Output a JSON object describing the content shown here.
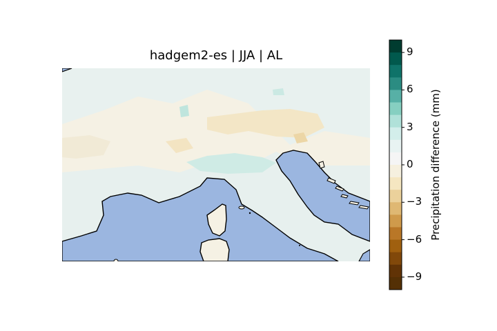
{
  "map": {
    "title": "hadgem2-es | JJA | AL",
    "land_color": "#f5f1e4",
    "sea_color": "#9bb6e0"
  },
  "colorbar": {
    "label": "Precipitation difference (mm)",
    "range": [
      -10,
      10
    ],
    "ticks": [
      "9",
      "6",
      "3",
      "0",
      "−3",
      "−6",
      "−9"
    ],
    "tick_values": [
      9,
      6,
      3,
      0,
      -3,
      -6,
      -9
    ],
    "colors": [
      "#003c30",
      "#01594d",
      "#0f7369",
      "#2b8c82",
      "#57b0a6",
      "#86cfc1",
      "#b0e1d9",
      "#d3eeeb",
      "#e8f3f2",
      "#f5f5f5",
      "#f6f0df",
      "#f5e6c1",
      "#ebd19b",
      "#dfb873",
      "#cf9a4b",
      "#b97727",
      "#a0600f",
      "#81480a",
      "#613306",
      "#543005"
    ]
  }
}
